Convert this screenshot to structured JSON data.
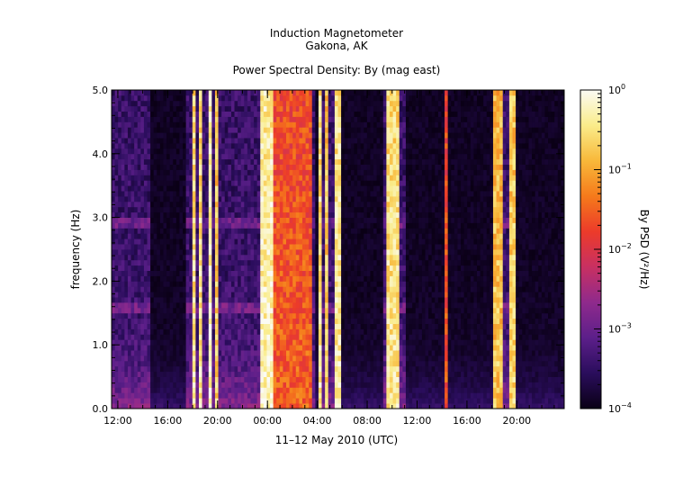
{
  "chart_data": {
    "type": "heatmap",
    "title_line1": "Induction Magnetometer",
    "title_line2": "Gakona, AK",
    "subtitle": "Power Spectral Density: By (mag east)",
    "xlabel": "11–12 May 2010 (UTC)",
    "ylabel": "frequency (Hz)",
    "x_tick_labels": [
      "12:00",
      "16:00",
      "20:00",
      "00:00",
      "04:00",
      "08:00",
      "12:00",
      "16:00",
      "20:00"
    ],
    "x_tick_hours": [
      0,
      4,
      8,
      12,
      16,
      20,
      24,
      28,
      32
    ],
    "x_range_hours": [
      -0.5,
      35.8
    ],
    "y_ticks": [
      0.0,
      1.0,
      2.0,
      3.0,
      4.0,
      5.0
    ],
    "y_tick_labels": [
      "0.0",
      "1.0",
      "2.0",
      "3.0",
      "4.0",
      "5.0"
    ],
    "ylim": [
      0,
      5
    ],
    "colorbar": {
      "label": "By PSD (V²/Hz)",
      "scale": "log",
      "range": [
        0.0001,
        1
      ],
      "ticks": [
        {
          "base": "10",
          "exp": "0",
          "value": 1
        },
        {
          "base": "10",
          "exp": "−1",
          "value": 0.1
        },
        {
          "base": "10",
          "exp": "−2",
          "value": 0.01
        },
        {
          "base": "10",
          "exp": "−3",
          "value": 0.001
        },
        {
          "base": "10",
          "exp": "−4",
          "value": 0.0001
        }
      ],
      "colors": [
        "#0a0015",
        "#2a0d5c",
        "#5c1f8a",
        "#8f2a8c",
        "#c83062",
        "#ec3b2a",
        "#f57a1b",
        "#f8b83a",
        "#faec8a",
        "#fbfbf4"
      ]
    },
    "bright_bands_hours": [
      {
        "start": 5.6,
        "end": 5.8,
        "level": 0.95
      },
      {
        "start": 6.0,
        "end": 6.2,
        "level": 0.9
      },
      {
        "start": 6.6,
        "end": 6.75,
        "level": 0.9
      },
      {
        "start": 7.4,
        "end": 7.6,
        "level": 0.95
      },
      {
        "start": 7.8,
        "end": 8.0,
        "level": 0.85
      },
      {
        "start": 11.5,
        "end": 12.4,
        "level": 0.95
      },
      {
        "start": 12.4,
        "end": 15.7,
        "level": 0.62
      },
      {
        "start": 16.2,
        "end": 16.45,
        "level": 0.9
      },
      {
        "start": 16.7,
        "end": 16.9,
        "level": 0.85
      },
      {
        "start": 17.5,
        "end": 17.8,
        "level": 0.92
      },
      {
        "start": 21.5,
        "end": 22.7,
        "level": 0.9
      },
      {
        "start": 26.3,
        "end": 26.5,
        "level": 0.6
      },
      {
        "start": 30.1,
        "end": 31.0,
        "level": 0.82
      },
      {
        "start": 31.4,
        "end": 31.55,
        "level": 0.85
      },
      {
        "start": 31.75,
        "end": 31.9,
        "level": 0.85
      }
    ],
    "dark_gaps_hours": [
      {
        "start": 2.5,
        "end": 5.4
      },
      {
        "start": 12.0,
        "end": 12.3
      },
      {
        "start": 15.9,
        "end": 16.1
      },
      {
        "start": 18.0,
        "end": 21.4
      },
      {
        "start": 23.0,
        "end": 30.0
      },
      {
        "start": 32.0,
        "end": 35.8
      }
    ]
  }
}
